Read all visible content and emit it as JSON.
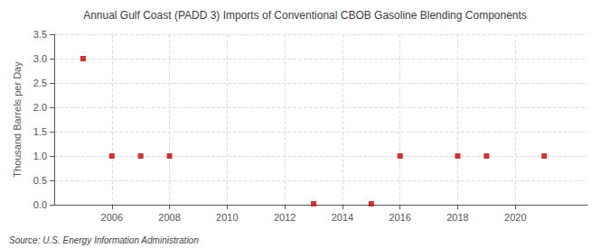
{
  "chart_data": {
    "type": "scatter",
    "title": "Annual Gulf Coast (PADD 3) Imports of Conventional CBOB Gasoline Blending Components",
    "ylabel": "Thousand Barrels per Day",
    "annotations": [
      "Source: U.S. Energy Information Administration"
    ],
    "x": [
      2005,
      2006,
      2007,
      2008,
      2013,
      2015,
      2016,
      2018,
      2019,
      2021
    ],
    "values": [
      3.0,
      1.0,
      1.0,
      1.0,
      0.02,
      0.02,
      1.0,
      1.0,
      1.0,
      1.0
    ],
    "color": "#cc0000",
    "marker": "square",
    "xlim": [
      2004.0,
      2022.5
    ],
    "xticks": [
      2006,
      2008,
      2010,
      2012,
      2014,
      2016,
      2018,
      2020
    ],
    "ylim": [
      0.0,
      3.5
    ],
    "yticks": [
      {
        "value": 0,
        "label": "0.0"
      },
      0.5,
      {
        "value": 1,
        "label": "1.0"
      },
      1.5,
      {
        "value": 2,
        "label": "2.0"
      },
      2.5,
      {
        "value": 3,
        "label": "3.0"
      },
      3.5
    ],
    "grid": true
  }
}
